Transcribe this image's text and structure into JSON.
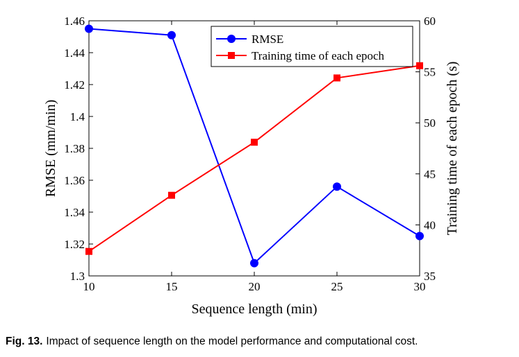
{
  "chart_data": {
    "type": "line",
    "x": [
      10,
      15,
      20,
      25,
      30
    ],
    "xlabel": "Sequence length (min)",
    "xlim": [
      10,
      30
    ],
    "xticks": [
      10,
      15,
      20,
      25,
      30
    ],
    "ylabel": "RMSE (mm/min)",
    "ylim": [
      1.3,
      1.46
    ],
    "yticks": [
      1.3,
      1.32,
      1.34,
      1.36,
      1.38,
      1.4,
      1.42,
      1.44,
      1.46
    ],
    "yticklabels": [
      "1.3",
      "1.32",
      "1.34",
      "1.36",
      "1.38",
      "1.4",
      "1.42",
      "1.44",
      "1.46"
    ],
    "y2label": "Training time of each epoch (s)",
    "y2lim": [
      35,
      60
    ],
    "y2ticks": [
      35,
      40,
      45,
      50,
      55,
      60
    ],
    "grid": false,
    "legend_position": "top-right",
    "series": [
      {
        "name": "RMSE",
        "axis": "left",
        "color": "#0000ff",
        "marker": "circle",
        "values": [
          1.455,
          1.451,
          1.308,
          1.356,
          1.325
        ]
      },
      {
        "name": "Training time of each epoch",
        "axis": "right",
        "color": "#ff0000",
        "marker": "square",
        "values": [
          37.4,
          42.9,
          48.1,
          54.4,
          55.6
        ]
      }
    ]
  },
  "caption": {
    "label": "Fig. 13.",
    "text": "Impact of sequence length on the model performance and computational cost."
  }
}
